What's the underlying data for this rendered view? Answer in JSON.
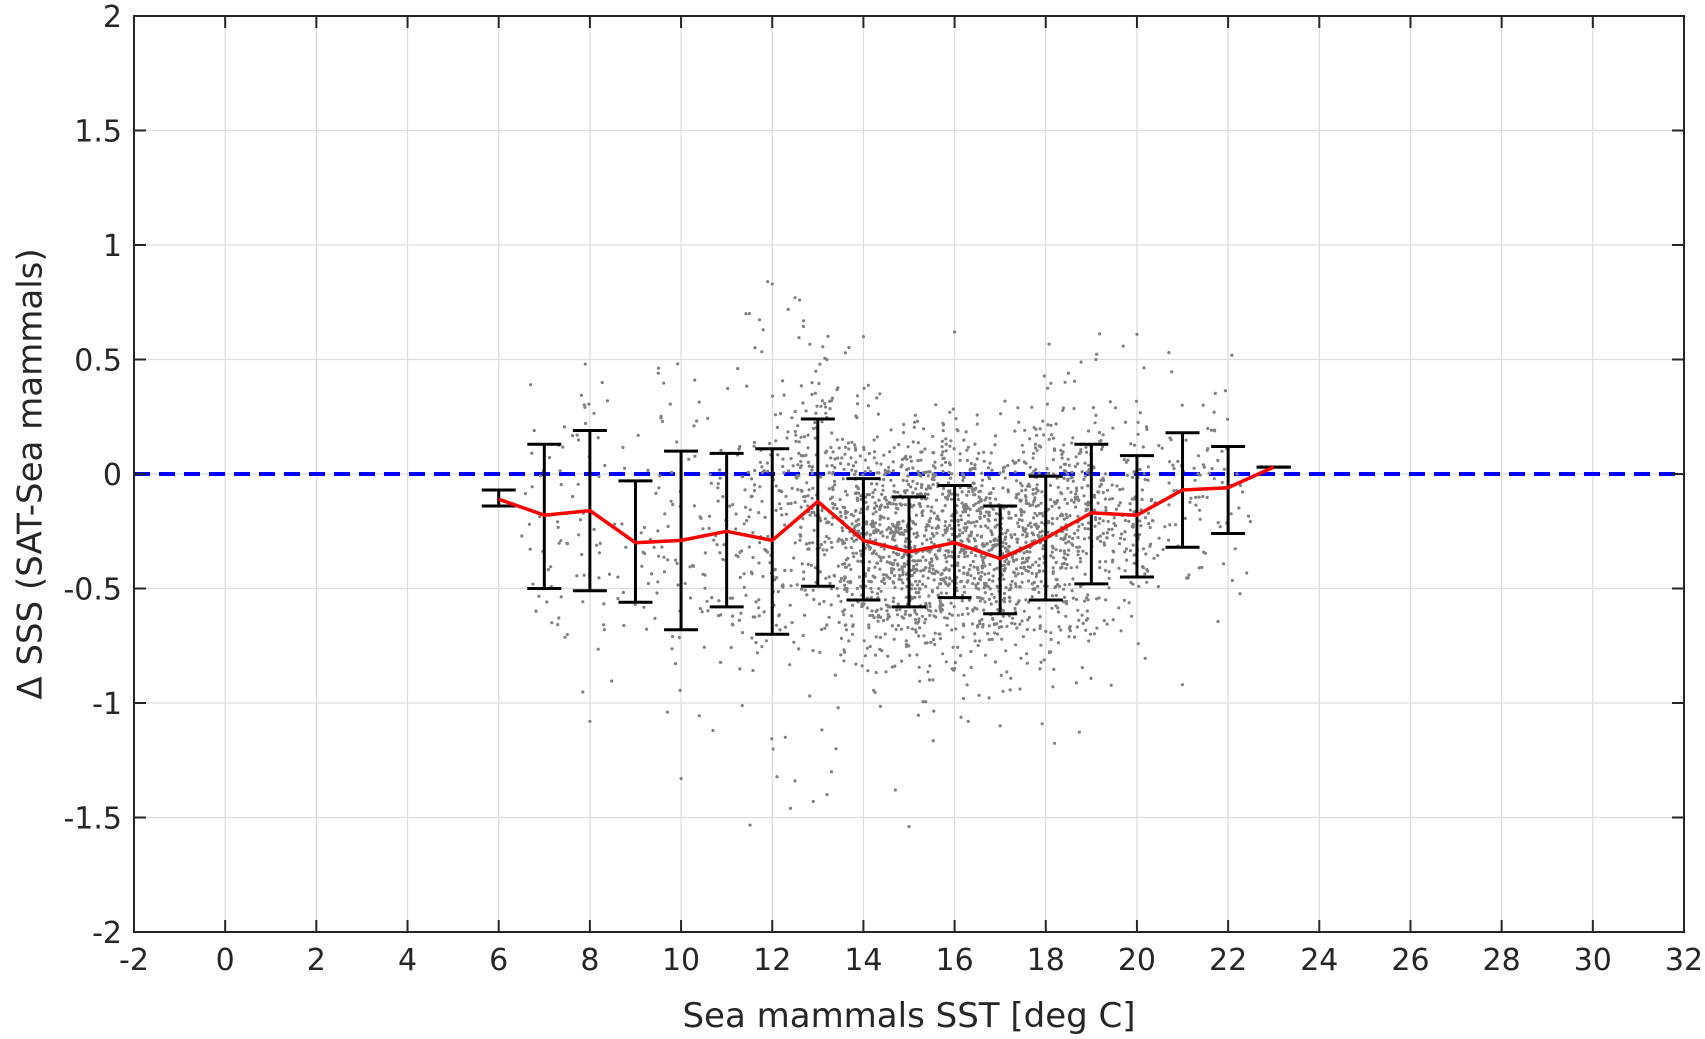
{
  "chart_data": {
    "type": "scatter",
    "title": "",
    "xlabel": "Sea mammals SST [deg C]",
    "ylabel": "Δ SSS (SAT-Sea mammals)",
    "xlim": [
      -2,
      32
    ],
    "ylim": [
      -2,
      2
    ],
    "xticks": [
      -2,
      0,
      2,
      4,
      6,
      8,
      10,
      12,
      14,
      16,
      18,
      20,
      22,
      24,
      26,
      28,
      30,
      32
    ],
    "yticks": [
      -2,
      -1.5,
      -1,
      -0.5,
      0,
      0.5,
      1,
      1.5,
      2
    ],
    "grid": true,
    "colors": {
      "points": "#808080",
      "mean_line": "#ff0000",
      "error_bars": "#000000",
      "zero_line": "#0000ff",
      "grid": "#dddddd",
      "axes": "#262626"
    },
    "reference_line": {
      "y": 0,
      "style": "dashed"
    },
    "binned_stats": [
      {
        "x": 6,
        "mean": -0.11,
        "lower": -0.14,
        "upper": -0.07
      },
      {
        "x": 7,
        "mean": -0.18,
        "lower": -0.5,
        "upper": 0.13
      },
      {
        "x": 8,
        "mean": -0.16,
        "lower": -0.51,
        "upper": 0.19
      },
      {
        "x": 9,
        "mean": -0.3,
        "lower": -0.56,
        "upper": -0.03
      },
      {
        "x": 10,
        "mean": -0.29,
        "lower": -0.68,
        "upper": 0.1
      },
      {
        "x": 11,
        "mean": -0.25,
        "lower": -0.58,
        "upper": 0.09
      },
      {
        "x": 12,
        "mean": -0.29,
        "lower": -0.7,
        "upper": 0.11
      },
      {
        "x": 13,
        "mean": -0.12,
        "lower": -0.49,
        "upper": 0.24
      },
      {
        "x": 14,
        "mean": -0.29,
        "lower": -0.55,
        "upper": -0.02
      },
      {
        "x": 15,
        "mean": -0.34,
        "lower": -0.58,
        "upper": -0.1
      },
      {
        "x": 16,
        "mean": -0.3,
        "lower": -0.54,
        "upper": -0.05
      },
      {
        "x": 17,
        "mean": -0.37,
        "lower": -0.61,
        "upper": -0.14
      },
      {
        "x": 18,
        "mean": -0.28,
        "lower": -0.55,
        "upper": -0.01
      },
      {
        "x": 19,
        "mean": -0.17,
        "lower": -0.48,
        "upper": 0.13
      },
      {
        "x": 20,
        "mean": -0.18,
        "lower": -0.45,
        "upper": 0.08
      },
      {
        "x": 21,
        "mean": -0.07,
        "lower": -0.32,
        "upper": 0.18
      },
      {
        "x": 22,
        "mean": -0.06,
        "lower": -0.26,
        "upper": 0.12
      },
      {
        "x": 23,
        "mean": 0.03,
        "lower": 0.03,
        "upper": 0.03
      }
    ],
    "scatter_bins": [
      {
        "x0": 6.5,
        "x1": 7.5,
        "n": 35,
        "center": -0.18,
        "spread": 0.3
      },
      {
        "x0": 7.5,
        "x1": 8.5,
        "n": 40,
        "center": -0.18,
        "spread": 0.32
      },
      {
        "x0": 8.5,
        "x1": 9.5,
        "n": 30,
        "center": -0.3,
        "spread": 0.25
      },
      {
        "x0": 9.5,
        "x1": 10.5,
        "n": 50,
        "center": -0.28,
        "spread": 0.35
      },
      {
        "x0": 10.5,
        "x1": 11.5,
        "n": 70,
        "center": -0.25,
        "spread": 0.33
      },
      {
        "x0": 11.5,
        "x1": 12.5,
        "n": 120,
        "center": -0.28,
        "spread": 0.36
      },
      {
        "x0": 12.5,
        "x1": 13.5,
        "n": 200,
        "center": -0.15,
        "spread": 0.34
      },
      {
        "x0": 13.5,
        "x1": 14.5,
        "n": 320,
        "center": -0.3,
        "spread": 0.27
      },
      {
        "x0": 14.5,
        "x1": 15.5,
        "n": 380,
        "center": -0.34,
        "spread": 0.25
      },
      {
        "x0": 15.5,
        "x1": 16.5,
        "n": 360,
        "center": -0.3,
        "spread": 0.26
      },
      {
        "x0": 16.5,
        "x1": 17.5,
        "n": 330,
        "center": -0.36,
        "spread": 0.25
      },
      {
        "x0": 17.5,
        "x1": 18.5,
        "n": 300,
        "center": -0.28,
        "spread": 0.27
      },
      {
        "x0": 18.5,
        "x1": 19.5,
        "n": 200,
        "center": -0.18,
        "spread": 0.28
      },
      {
        "x0": 19.5,
        "x1": 20.5,
        "n": 110,
        "center": -0.18,
        "spread": 0.27
      },
      {
        "x0": 20.5,
        "x1": 21.5,
        "n": 45,
        "center": -0.08,
        "spread": 0.25
      },
      {
        "x0": 21.5,
        "x1": 22.5,
        "n": 40,
        "center": -0.06,
        "spread": 0.22
      }
    ],
    "outliers": [
      [
        11.9,
        0.84
      ],
      [
        12.0,
        0.83
      ],
      [
        12.5,
        0.77
      ],
      [
        12.6,
        0.76
      ],
      [
        11.8,
        0.63
      ],
      [
        16.0,
        0.62
      ],
      [
        14.0,
        0.6
      ],
      [
        20.0,
        0.61
      ],
      [
        20.7,
        0.53
      ],
      [
        7.9,
        0.48
      ],
      [
        6.7,
        0.39
      ],
      [
        9.5,
        0.44
      ],
      [
        10.3,
        0.41
      ],
      [
        18.5,
        0.44
      ],
      [
        19.1,
        0.5
      ],
      [
        12.5,
        -1.34
      ],
      [
        12.4,
        -1.46
      ],
      [
        13.4,
        -1.2
      ],
      [
        13.3,
        -1.3
      ],
      [
        15.0,
        -1.54
      ],
      [
        14.7,
        -1.38
      ],
      [
        10.0,
        -1.33
      ],
      [
        8.0,
        -1.08
      ],
      [
        9.7,
        -1.04
      ],
      [
        17.0,
        -1.1
      ],
      [
        21.0,
        -0.92
      ],
      [
        10.7,
        -1.12
      ],
      [
        16.3,
        -1.08
      ],
      [
        12.9,
        -1.43
      ],
      [
        13.2,
        -1.4
      ]
    ]
  }
}
